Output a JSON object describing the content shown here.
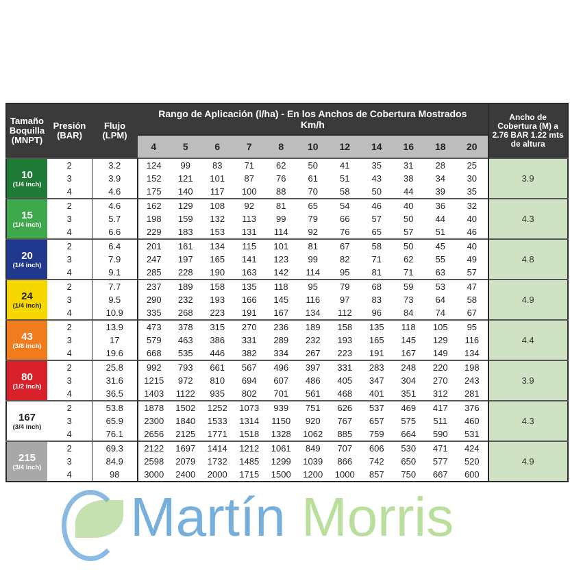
{
  "header": {
    "size": "Tamaño Boquilla (MNPT)",
    "pressure": "Presión (BAR)",
    "flow": "Flujo (LPM)",
    "range_title": "Rango de Aplicación (l/ha) - En los Anchos de Cobertura Mostrados",
    "range_unit": "Km/h",
    "speeds": [
      "4",
      "5",
      "6",
      "7",
      "8",
      "10",
      "12",
      "14",
      "16",
      "18",
      "20"
    ],
    "width": "Ancho de Cobertura (M) a 2.76 BAR 1.22 mts de altura"
  },
  "groups": [
    {
      "size": "10",
      "inch": "(1/4 inch)",
      "color": "#1e7a36",
      "text_color": "#ffffff",
      "pressures": [
        "2",
        "3",
        "4"
      ],
      "flows": [
        "3.2",
        "3.9",
        "4.6"
      ],
      "rates": [
        [
          "124",
          "99",
          "83",
          "71",
          "62",
          "50",
          "41",
          "35",
          "31",
          "28",
          "25"
        ],
        [
          "152",
          "121",
          "101",
          "87",
          "76",
          "61",
          "51",
          "43",
          "38",
          "34",
          "30"
        ],
        [
          "175",
          "140",
          "117",
          "100",
          "88",
          "70",
          "58",
          "50",
          "44",
          "39",
          "35"
        ]
      ],
      "width": "3.9"
    },
    {
      "size": "15",
      "inch": "(1/4 inch)",
      "color": "#3ea84c",
      "text_color": "#ffffff",
      "pressures": [
        "2",
        "3",
        "4"
      ],
      "flows": [
        "4.6",
        "5.7",
        "6.6"
      ],
      "rates": [
        [
          "162",
          "129",
          "108",
          "92",
          "81",
          "65",
          "54",
          "46",
          "40",
          "36",
          "32"
        ],
        [
          "198",
          "159",
          "132",
          "113",
          "99",
          "79",
          "66",
          "57",
          "50",
          "44",
          "40"
        ],
        [
          "229",
          "183",
          "153",
          "131",
          "114",
          "92",
          "76",
          "65",
          "57",
          "51",
          "46"
        ]
      ],
      "width": "4.3"
    },
    {
      "size": "20",
      "inch": "(1/4 inch)",
      "color": "#20398f",
      "text_color": "#ffffff",
      "pressures": [
        "2",
        "3",
        "4"
      ],
      "flows": [
        "6.4",
        "7.9",
        "9.1"
      ],
      "rates": [
        [
          "201",
          "161",
          "134",
          "115",
          "101",
          "81",
          "67",
          "58",
          "50",
          "45",
          "40"
        ],
        [
          "247",
          "197",
          "165",
          "141",
          "123",
          "99",
          "82",
          "71",
          "62",
          "55",
          "49"
        ],
        [
          "285",
          "228",
          "190",
          "163",
          "142",
          "114",
          "95",
          "81",
          "71",
          "63",
          "57"
        ]
      ],
      "width": "4.8"
    },
    {
      "size": "24",
      "inch": "(1/4 inch)",
      "color": "#f6d800",
      "text_color": "#222222",
      "pressures": [
        "2",
        "3",
        "4"
      ],
      "flows": [
        "7.7",
        "9.5",
        "10.9"
      ],
      "rates": [
        [
          "237",
          "189",
          "158",
          "135",
          "118",
          "95",
          "79",
          "68",
          "59",
          "53",
          "47"
        ],
        [
          "290",
          "232",
          "193",
          "166",
          "145",
          "116",
          "97",
          "83",
          "73",
          "64",
          "58"
        ],
        [
          "335",
          "268",
          "223",
          "191",
          "167",
          "134",
          "112",
          "96",
          "84",
          "74",
          "67"
        ]
      ],
      "width": "4.9"
    },
    {
      "size": "43",
      "inch": "(3/8 inch)",
      "color": "#f07c1e",
      "text_color": "#ffffff",
      "pressures": [
        "2",
        "3",
        "4"
      ],
      "flows": [
        "13.9",
        "17",
        "19.6"
      ],
      "rates": [
        [
          "473",
          "378",
          "315",
          "270",
          "236",
          "189",
          "158",
          "135",
          "118",
          "105",
          "95"
        ],
        [
          "579",
          "463",
          "386",
          "331",
          "289",
          "232",
          "193",
          "165",
          "145",
          "129",
          "116"
        ],
        [
          "668",
          "535",
          "446",
          "382",
          "334",
          "267",
          "223",
          "191",
          "167",
          "149",
          "134"
        ]
      ],
      "width": "4.4"
    },
    {
      "size": "80",
      "inch": "(1/2 inch)",
      "color": "#d8202a",
      "text_color": "#ffffff",
      "pressures": [
        "2",
        "3",
        "4"
      ],
      "flows": [
        "25.8",
        "31.6",
        "36.5"
      ],
      "rates": [
        [
          "992",
          "793",
          "661",
          "567",
          "496",
          "397",
          "331",
          "283",
          "248",
          "220",
          "198"
        ],
        [
          "1215",
          "972",
          "810",
          "694",
          "607",
          "486",
          "405",
          "347",
          "304",
          "270",
          "243"
        ],
        [
          "1403",
          "1122",
          "935",
          "802",
          "701",
          "561",
          "468",
          "401",
          "351",
          "312",
          "281"
        ]
      ],
      "width": "3.9"
    },
    {
      "size": "167",
      "inch": "(3/4 inch)",
      "color": "#ffffff",
      "text_color": "#222222",
      "pressures": [
        "2",
        "3",
        "4"
      ],
      "flows": [
        "53.8",
        "65.9",
        "76.1"
      ],
      "rates": [
        [
          "1878",
          "1502",
          "1252",
          "1073",
          "939",
          "751",
          "626",
          "537",
          "469",
          "417",
          "376"
        ],
        [
          "2300",
          "1840",
          "1533",
          "1314",
          "1150",
          "920",
          "767",
          "657",
          "575",
          "511",
          "460"
        ],
        [
          "2656",
          "2125",
          "1771",
          "1518",
          "1328",
          "1062",
          "885",
          "759",
          "664",
          "590",
          "531"
        ]
      ],
      "width": "4.3"
    },
    {
      "size": "215",
      "inch": "(3/4 inch)",
      "color": "#a8a8a8",
      "text_color": "#ffffff",
      "pressures": [
        "2",
        "3",
        "4"
      ],
      "flows": [
        "69.3",
        "84.9",
        "98"
      ],
      "rates": [
        [
          "2122",
          "1697",
          "1414",
          "1212",
          "1061",
          "849",
          "707",
          "606",
          "530",
          "471",
          "424"
        ],
        [
          "2598",
          "2079",
          "1732",
          "1485",
          "1299",
          "1039",
          "866",
          "742",
          "650",
          "577",
          "520"
        ],
        [
          "3000",
          "2400",
          "2000",
          "1715",
          "1500",
          "1200",
          "1000",
          "857",
          "750",
          "667",
          "600"
        ]
      ],
      "width": "4.9"
    }
  ],
  "watermark": {
    "part1": "Martín",
    "part2": "Morris"
  }
}
